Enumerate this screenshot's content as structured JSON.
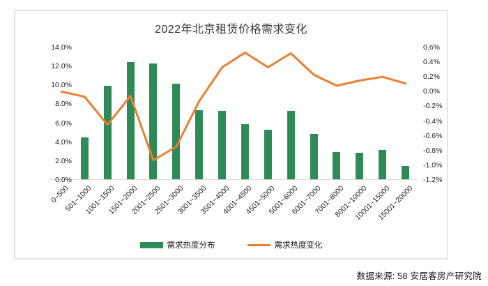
{
  "title": "2022年北京租赁价格需求变化",
  "source": {
    "text": "数据来源: 58 安居客房产研究院"
  },
  "colors": {
    "bar": "#2e8b57",
    "line": "#ed7d31",
    "axis_line": "#d6d6d6",
    "text": "#1c1c1c"
  },
  "chart_data": {
    "type": "bar+line combo",
    "title": "2022年北京租赁价格需求变化",
    "grid": false,
    "legend_position": "bottom",
    "categories": [
      "0~500",
      "501~1000",
      "1001~1500",
      "1501~2000",
      "2001~2500",
      "2501~3000",
      "3001~3500",
      "3501~4000",
      "4001~4500",
      "4501~5000",
      "5001~6000",
      "6001~7000",
      "7001~8000",
      "8001~10000",
      "10001~15000",
      "15001~20000"
    ],
    "series": [
      {
        "name": "需求热度分布",
        "type": "bar",
        "axis": "left",
        "unit": "%",
        "values": [
          0.0,
          4.4,
          9.9,
          12.4,
          12.2,
          10.1,
          7.3,
          7.2,
          5.8,
          5.2,
          7.2,
          4.8,
          2.9,
          2.8,
          3.1,
          1.4
        ]
      },
      {
        "name": "需求热度变化",
        "type": "line",
        "axis": "right",
        "unit": "%",
        "values": [
          0.0,
          -0.07,
          -0.45,
          -0.06,
          -0.93,
          -0.75,
          -0.13,
          0.33,
          0.53,
          0.33,
          0.52,
          0.23,
          0.08,
          0.15,
          0.2,
          0.11
        ]
      }
    ],
    "left_axis": {
      "min": 0,
      "max": 14,
      "step": 2,
      "format": "percent",
      "ticks": [
        "14.0%",
        "12.0%",
        "10.0%",
        "8.0%",
        "6.0%",
        "4.0%",
        "2.0%",
        "0.0%"
      ]
    },
    "right_axis": {
      "min": -1.2,
      "max": 0.6,
      "step": 0.2,
      "format": "percent",
      "ticks": [
        "0.6%",
        "0.4%",
        "0.2%",
        "0.0%",
        "-0.2%",
        "-0.4%",
        "-0.6%",
        "-0.8%",
        "-1.0%",
        "-1.2%"
      ]
    }
  }
}
